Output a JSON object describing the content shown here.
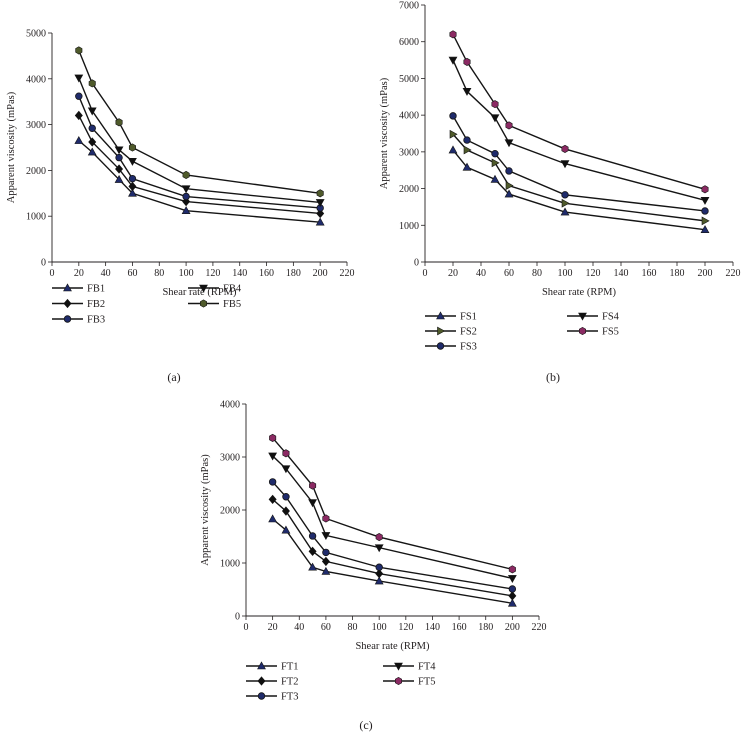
{
  "chart_data": [
    {
      "panel_label": "(a)",
      "type": "line",
      "xlabel": "Shear rate (RPM)",
      "ylabel": "Apparent viscosity (mPas)",
      "xlim": [
        0,
        220
      ],
      "ylim": [
        0,
        5000
      ],
      "xticks": [
        0,
        20,
        40,
        60,
        80,
        100,
        120,
        140,
        160,
        180,
        200,
        220
      ],
      "yticks": [
        0,
        1000,
        2000,
        3000,
        4000,
        5000
      ],
      "x": [
        20,
        30,
        50,
        60,
        100,
        200
      ],
      "series": [
        {
          "name": "FB1",
          "marker": "triangle-up",
          "color": "#1f2b6b",
          "values": [
            2650,
            2400,
            1800,
            1500,
            1120,
            870
          ]
        },
        {
          "name": "FB2",
          "marker": "diamond",
          "color": "#101010",
          "values": [
            3200,
            2620,
            2030,
            1650,
            1320,
            1060
          ]
        },
        {
          "name": "FB3",
          "marker": "circle",
          "color": "#1f2b6b",
          "values": [
            3620,
            2920,
            2280,
            1820,
            1430,
            1180
          ]
        },
        {
          "name": "FB4",
          "marker": "triangle-down",
          "color": "#101010",
          "values": [
            4020,
            3300,
            2450,
            2200,
            1600,
            1300
          ]
        },
        {
          "name": "FB5",
          "marker": "hexagon",
          "color": "#4f5a2b",
          "values": [
            4620,
            3900,
            3050,
            2500,
            1900,
            1500
          ]
        }
      ]
    },
    {
      "panel_label": "(b)",
      "type": "line",
      "xlabel": "Shear rate (RPM)",
      "ylabel": "Apparent viscosity (mPas)",
      "xlim": [
        0,
        220
      ],
      "ylim": [
        0,
        7000
      ],
      "xticks": [
        0,
        20,
        40,
        60,
        80,
        100,
        120,
        140,
        160,
        180,
        200,
        220
      ],
      "yticks": [
        0,
        1000,
        2000,
        3000,
        4000,
        5000,
        6000,
        7000
      ],
      "x": [
        20,
        30,
        50,
        60,
        100,
        200
      ],
      "series": [
        {
          "name": "FS1",
          "marker": "triangle-up",
          "color": "#1f2b6b",
          "values": [
            3050,
            2580,
            2250,
            1850,
            1360,
            880
          ]
        },
        {
          "name": "FS2",
          "marker": "triangle-right",
          "color": "#4f5a2b",
          "values": [
            3480,
            3050,
            2700,
            2080,
            1600,
            1120
          ]
        },
        {
          "name": "FS3",
          "marker": "circle",
          "color": "#1f2b6b",
          "values": [
            3980,
            3320,
            2950,
            2480,
            1830,
            1390
          ]
        },
        {
          "name": "FS4",
          "marker": "triangle-down",
          "color": "#101010",
          "values": [
            5500,
            4650,
            3930,
            3250,
            2680,
            1680
          ]
        },
        {
          "name": "FS5",
          "marker": "hexagon",
          "color": "#8b2a63",
          "values": [
            6200,
            5450,
            4300,
            3720,
            3080,
            1980
          ]
        }
      ]
    },
    {
      "panel_label": "(c)",
      "type": "line",
      "xlabel": "Shear rate (RPM)",
      "ylabel": "Apparent viscosity (mPas)",
      "xlim": [
        0,
        220
      ],
      "ylim": [
        0,
        4000
      ],
      "xticks": [
        0,
        20,
        40,
        60,
        80,
        100,
        120,
        140,
        160,
        180,
        200,
        220
      ],
      "yticks": [
        0,
        1000,
        2000,
        3000,
        4000
      ],
      "x": [
        20,
        30,
        50,
        60,
        100,
        200
      ],
      "series": [
        {
          "name": "FT1",
          "marker": "triangle-up",
          "color": "#1f2b6b",
          "values": [
            1830,
            1620,
            920,
            840,
            660,
            240
          ]
        },
        {
          "name": "FT2",
          "marker": "diamond",
          "color": "#101010",
          "values": [
            2200,
            1980,
            1220,
            1030,
            800,
            380
          ]
        },
        {
          "name": "FT3",
          "marker": "circle",
          "color": "#1f2b6b",
          "values": [
            2530,
            2250,
            1510,
            1200,
            920,
            510
          ]
        },
        {
          "name": "FT4",
          "marker": "triangle-down",
          "color": "#101010",
          "values": [
            3020,
            2780,
            2140,
            1520,
            1290,
            710
          ]
        },
        {
          "name": "FT5",
          "marker": "hexagon",
          "color": "#8b2a63",
          "values": [
            3360,
            3070,
            2460,
            1840,
            1490,
            880
          ]
        }
      ]
    }
  ]
}
